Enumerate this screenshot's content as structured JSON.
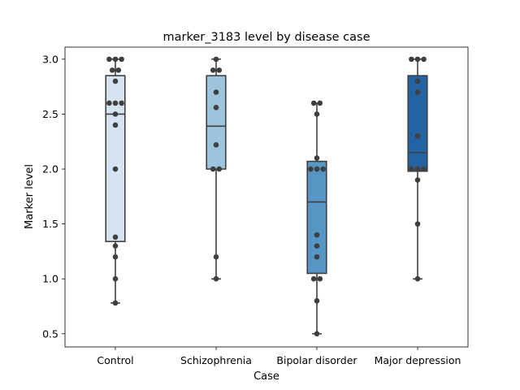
{
  "chart_data": {
    "type": "boxplot",
    "title": "marker_3183 level by disease case",
    "xlabel": "Case",
    "ylabel": "Marker level",
    "ylim": [
      0.38,
      3.11
    ],
    "yticks": [
      0.5,
      1.0,
      1.5,
      2.0,
      2.5,
      3.0
    ],
    "ytick_labels": [
      "0.5",
      "1.0",
      "1.5",
      "2.0",
      "2.5",
      "3.0"
    ],
    "categories": [
      "Control",
      "Schizophrenia",
      "Bipolar disorder",
      "Major depression"
    ],
    "colors": [
      "#d6e4f2",
      "#9cc5dd",
      "#5795c4",
      "#2463a3"
    ],
    "grid": false,
    "legend": "none",
    "boxes": [
      {
        "whisker_low": 0.78,
        "q1": 1.34,
        "median": 2.5,
        "q3": 2.85,
        "whisker_high": 3.0
      },
      {
        "whisker_low": 1.0,
        "q1": 2.0,
        "median": 2.39,
        "q3": 2.85,
        "whisker_high": 3.0
      },
      {
        "whisker_low": 0.5,
        "q1": 1.05,
        "median": 1.7,
        "q3": 2.07,
        "whisker_high": 2.6
      },
      {
        "whisker_low": 1.0,
        "q1": 1.98,
        "median": 2.15,
        "q3": 2.85,
        "whisker_high": 3.0
      }
    ],
    "points": [
      [
        0.78,
        1.0,
        1.2,
        1.3,
        1.38,
        2.0,
        2.4,
        2.5,
        2.6,
        2.6,
        2.6,
        2.8,
        2.9,
        2.9,
        3.0,
        3.0,
        3.0
      ],
      [
        1.0,
        1.2,
        2.0,
        2.0,
        2.22,
        2.56,
        2.7,
        2.9,
        2.9,
        3.0
      ],
      [
        0.5,
        0.8,
        1.0,
        1.0,
        1.2,
        1.3,
        1.4,
        2.0,
        2.0,
        2.0,
        2.1,
        2.5,
        2.6,
        2.6
      ],
      [
        1.0,
        1.5,
        1.9,
        2.0,
        2.0,
        2.0,
        2.3,
        2.7,
        2.8,
        3.0,
        3.0,
        3.0
      ]
    ]
  }
}
